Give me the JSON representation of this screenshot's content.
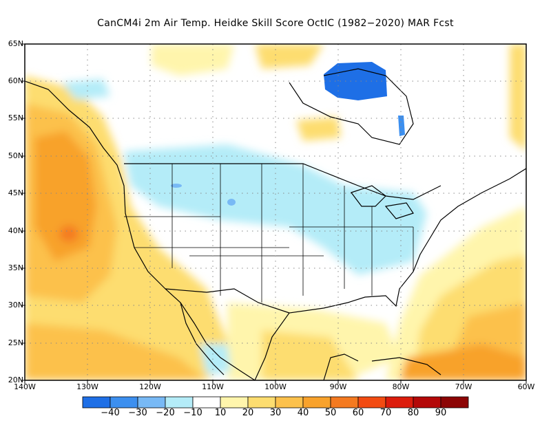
{
  "title": "CanCM4i  2m Air Temp. Heidke Skill Score OctIC (1982−2020) MAR Fcst",
  "lat_labels": [
    "65N",
    "60N",
    "55N",
    "50N",
    "45N",
    "40N",
    "35N",
    "30N",
    "25N",
    "20N"
  ],
  "lon_labels": [
    "140W",
    "130W",
    "120W",
    "110W",
    "100W",
    "90W",
    "80W",
    "70W",
    "60W"
  ],
  "colorbar": {
    "colors": [
      "#1e6fe6",
      "#3c8fef",
      "#78b9f5",
      "#b4ecf8",
      "#ffffff",
      "#fff5ac",
      "#fddd70",
      "#fcc14c",
      "#f8a22c",
      "#f47a20",
      "#f24b12",
      "#dc1c0c",
      "#b40808",
      "#8c0404"
    ],
    "labels": [
      "−40",
      "−30",
      "−20",
      "−10",
      "10",
      "20",
      "30",
      "40",
      "50",
      "60",
      "70",
      "80",
      "90"
    ]
  },
  "map": {
    "extent": {
      "lon": [
        -140,
        -60
      ],
      "lat": [
        20,
        65
      ]
    },
    "gridlines": "dotted"
  }
}
